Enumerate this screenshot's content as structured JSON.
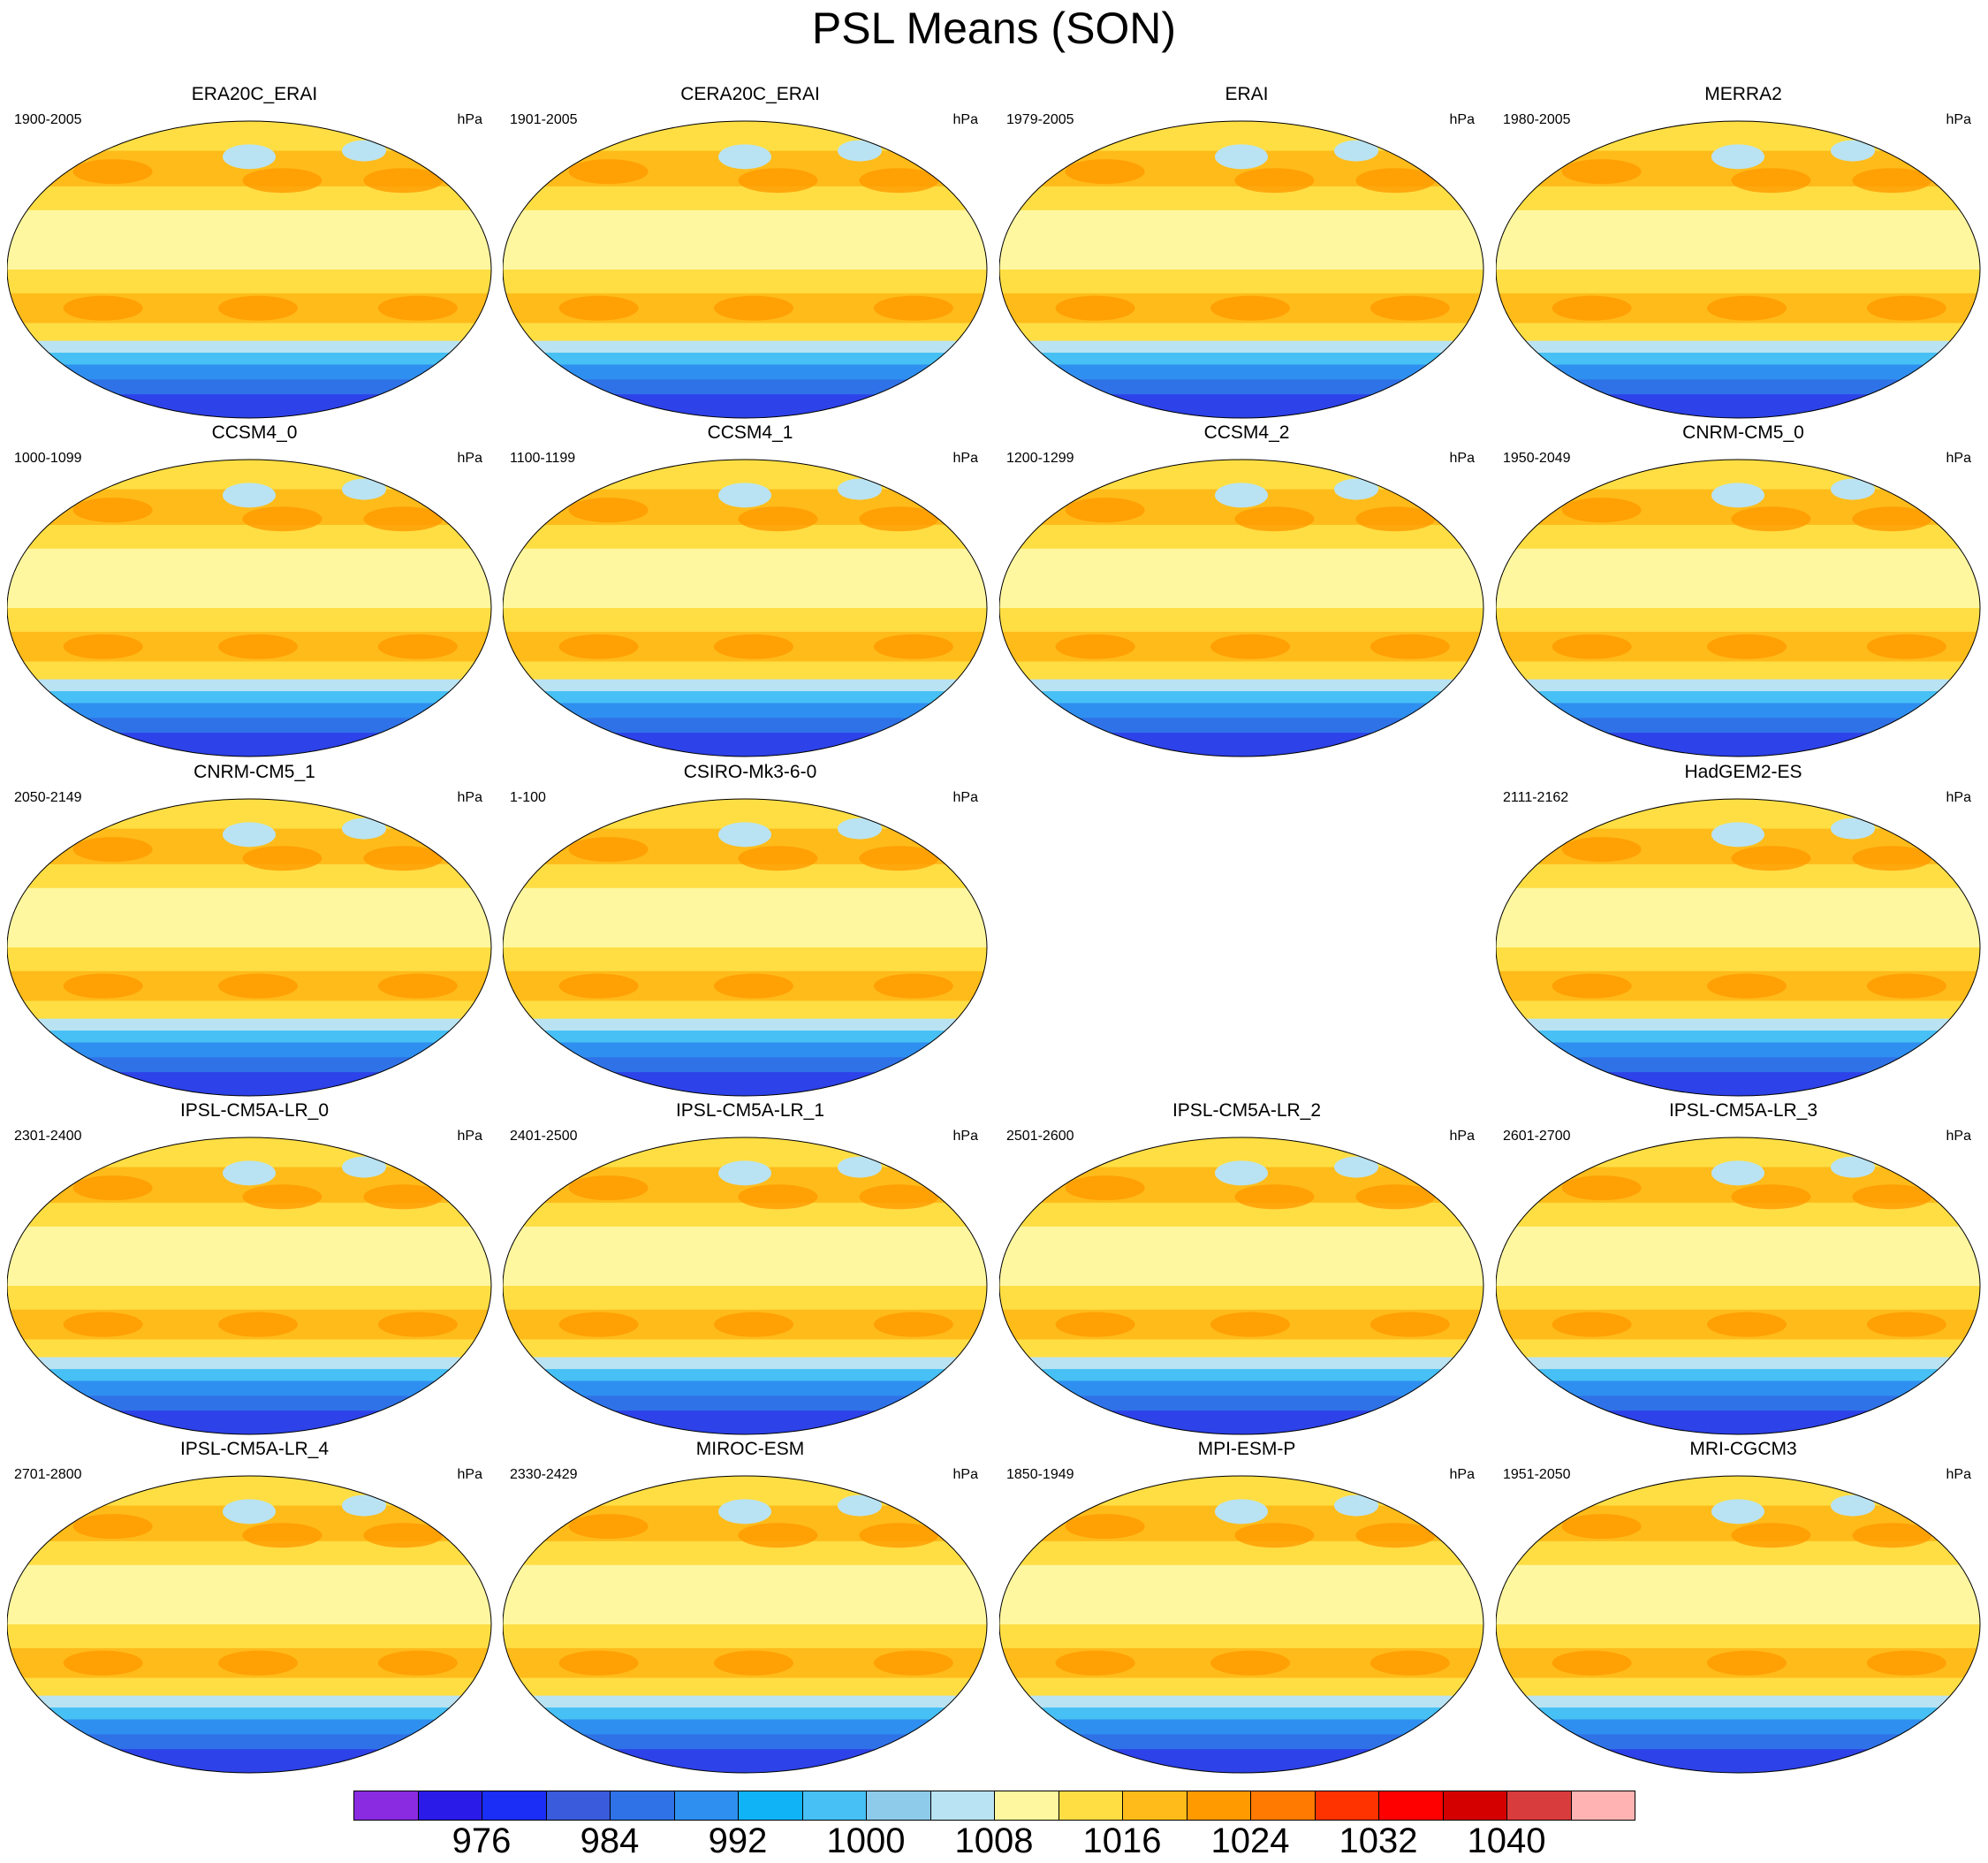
{
  "chart_data": {
    "type": "heatmap",
    "title": "PSL Means (SON)",
    "units": "hPa",
    "colorbar": {
      "levels": [
        972,
        976,
        980,
        984,
        988,
        992,
        996,
        1000,
        1004,
        1008,
        1012,
        1016,
        1020,
        1024,
        1028,
        1032,
        1036,
        1040
      ],
      "tick_labels": [
        "976",
        "984",
        "992",
        "1000",
        "1008",
        "1016",
        "1024",
        "1032",
        "1040"
      ],
      "colors": [
        "#8a2be2",
        "#2b1be8",
        "#1a2ef5",
        "#3a5bdc",
        "#2f72e8",
        "#2f8ff0",
        "#10b3f5",
        "#46c0f5",
        "#8ecbea",
        "#b9e3f2",
        "#fff7a0",
        "#ffde44",
        "#ffbb1a",
        "#ff9a00",
        "#ff7a00",
        "#ff3300",
        "#ff0000",
        "#d40000",
        "#d93c3c",
        "#ffb3b3"
      ]
    },
    "panels": [
      {
        "name": "ERA20C_ERAI",
        "period": "1900-2005",
        "units": "hPa",
        "present": true
      },
      {
        "name": "CERA20C_ERAI",
        "period": "1901-2005",
        "units": "hPa",
        "present": true
      },
      {
        "name": "ERAI",
        "period": "1979-2005",
        "units": "hPa",
        "present": true
      },
      {
        "name": "MERRA2",
        "period": "1980-2005",
        "units": "hPa",
        "present": true
      },
      {
        "name": "CCSM4_0",
        "period": "1000-1099",
        "units": "hPa",
        "present": true
      },
      {
        "name": "CCSM4_1",
        "period": "1100-1199",
        "units": "hPa",
        "present": true
      },
      {
        "name": "CCSM4_2",
        "period": "1200-1299",
        "units": "hPa",
        "present": true
      },
      {
        "name": "CNRM-CM5_0",
        "period": "1950-2049",
        "units": "hPa",
        "present": true
      },
      {
        "name": "CNRM-CM5_1",
        "period": "2050-2149",
        "units": "hPa",
        "present": true
      },
      {
        "name": "CSIRO-Mk3-6-0",
        "period": "1-100",
        "units": "hPa",
        "present": true
      },
      {
        "name": "",
        "period": "",
        "units": "",
        "present": false
      },
      {
        "name": "HadGEM2-ES",
        "period": "2111-2162",
        "units": "hPa",
        "present": true
      },
      {
        "name": "IPSL-CM5A-LR_0",
        "period": "2301-2400",
        "units": "hPa",
        "present": true
      },
      {
        "name": "IPSL-CM5A-LR_1",
        "period": "2401-2500",
        "units": "hPa",
        "present": true
      },
      {
        "name": "IPSL-CM5A-LR_2",
        "period": "2501-2600",
        "units": "hPa",
        "present": true
      },
      {
        "name": "IPSL-CM5A-LR_3",
        "period": "2601-2700",
        "units": "hPa",
        "present": true
      },
      {
        "name": "IPSL-CM5A-LR_4",
        "period": "2701-2800",
        "units": "hPa",
        "present": true
      },
      {
        "name": "MIROC-ESM",
        "period": "2330-2429",
        "units": "hPa",
        "present": true
      },
      {
        "name": "MPI-ESM-P",
        "period": "1850-1949",
        "units": "hPa",
        "present": true
      },
      {
        "name": "MRI-CGCM3",
        "period": "1951-2050",
        "units": "hPa",
        "present": true
      }
    ]
  }
}
